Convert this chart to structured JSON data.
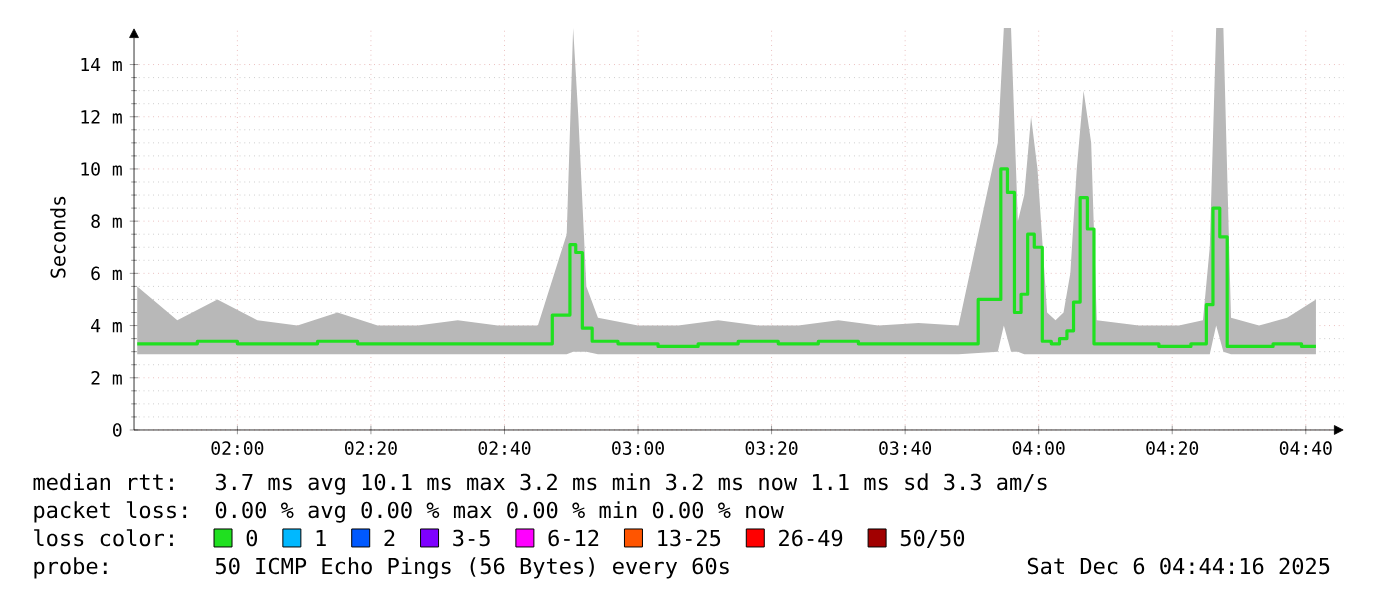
{
  "chart_data": {
    "type": "step",
    "ylabel": "Seconds",
    "legend_title": "loss color:",
    "legend": "bottom",
    "grid": true,
    "xlim": [
      1.742,
      4.762
    ],
    "ylim": [
      0,
      15.4
    ],
    "xticks": [
      {
        "value": 2,
        "label": "02:00"
      },
      {
        "value": 2.3333,
        "label": "02:20"
      },
      {
        "value": 2.6667,
        "label": "02:40"
      },
      {
        "value": 3,
        "label": "03:00"
      },
      {
        "value": 3.3333,
        "label": "03:20"
      },
      {
        "value": 3.6667,
        "label": "03:40"
      },
      {
        "value": 4,
        "label": "04:00"
      },
      {
        "value": 4.3333,
        "label": "04:20"
      },
      {
        "value": 4.6667,
        "label": "04:40"
      }
    ],
    "yticks": [
      0,
      {
        "value": 2,
        "label": "2 m"
      },
      {
        "value": 4,
        "label": "4 m"
      },
      {
        "value": 6,
        "label": "6 m"
      },
      {
        "value": 8,
        "label": "8 m"
      },
      {
        "value": 10,
        "label": "10 m"
      },
      {
        "value": 12,
        "label": "12 m"
      },
      {
        "value": 14,
        "label": "14 m"
      }
    ],
    "x": [
      1.75,
      1.85,
      1.95,
      2.05,
      2.15,
      2.25,
      2.35,
      2.45,
      2.55,
      2.65,
      2.75,
      2.822,
      2.838,
      2.851,
      2.871,
      2.9,
      3.0,
      3.1,
      3.2,
      3.3,
      3.4,
      3.5,
      3.6,
      3.7,
      3.8,
      3.898,
      3.913,
      3.931,
      3.948,
      3.964,
      3.981,
      3.997,
      4.021,
      4.042,
      4.062,
      4.079,
      4.095,
      4.112,
      4.131,
      4.145,
      4.25,
      4.35,
      4.41,
      4.427,
      4.443,
      4.461,
      4.48,
      4.55,
      4.62,
      4.692
    ],
    "series": [
      {
        "name": "0",
        "color": "#20e020",
        "values": [
          3.3,
          3.3,
          3.4,
          3.3,
          3.3,
          3.4,
          3.3,
          3.3,
          3.3,
          3.3,
          3.3,
          4.4,
          7.1,
          6.8,
          3.9,
          3.4,
          3.3,
          3.2,
          3.3,
          3.4,
          3.3,
          3.4,
          3.3,
          3.3,
          3.3,
          5.0,
          10.0,
          9.1,
          4.5,
          5.2,
          7.5,
          7.0,
          3.4,
          3.3,
          3.5,
          3.8,
          4.9,
          8.9,
          7.7,
          3.3,
          3.3,
          3.2,
          3.3,
          4.8,
          8.5,
          7.4,
          3.2,
          3.2,
          3.3,
          3.2
        ],
        "lower": [
          2.9,
          2.9,
          2.9,
          2.9,
          2.9,
          2.9,
          2.9,
          2.9,
          2.9,
          2.9,
          2.9,
          2.9,
          3.0,
          3.0,
          3.0,
          2.9,
          2.9,
          2.9,
          2.9,
          2.9,
          2.9,
          2.9,
          2.9,
          2.9,
          2.9,
          3.0,
          4.0,
          3.0,
          3.0,
          2.9,
          2.9,
          2.9,
          2.9,
          2.9,
          2.9,
          2.9,
          2.9,
          2.9,
          2.9,
          2.9,
          2.9,
          2.9,
          2.9,
          2.9,
          4.0,
          3.0,
          2.9,
          2.9,
          2.9,
          2.9
        ],
        "upper": [
          5.5,
          4.2,
          5.0,
          4.2,
          4.0,
          4.5,
          4.0,
          4.0,
          4.2,
          4.0,
          4.0,
          7.5,
          15.4,
          12.0,
          5.5,
          4.3,
          4.0,
          4.0,
          4.2,
          4.0,
          4.0,
          4.2,
          4.0,
          4.1,
          4.0,
          11.0,
          15.4,
          15.4,
          8.0,
          9.0,
          12.0,
          10.0,
          4.5,
          4.2,
          4.5,
          6.0,
          10.0,
          13.0,
          11.0,
          4.2,
          4.0,
          4.0,
          4.2,
          7.0,
          15.4,
          15.4,
          4.3,
          4.0,
          4.3,
          5.0
        ]
      },
      {
        "name": "1",
        "color": "#00b8ff",
        "values": [
          null,
          null,
          null,
          null,
          null,
          null,
          null,
          null,
          null,
          null,
          null,
          null,
          null,
          null,
          null,
          null,
          null,
          null,
          null,
          null,
          null,
          null,
          null,
          null,
          null,
          null,
          null,
          null,
          null,
          null,
          null,
          null,
          null,
          null,
          null,
          null,
          null,
          null,
          null,
          null,
          null,
          null,
          null,
          null,
          null,
          null,
          null,
          null,
          null,
          null
        ]
      },
      {
        "name": "2",
        "color": "#0059ff",
        "values": [
          null,
          null,
          null,
          null,
          null,
          null,
          null,
          null,
          null,
          null,
          null,
          null,
          null,
          null,
          null,
          null,
          null,
          null,
          null,
          null,
          null,
          null,
          null,
          null,
          null,
          null,
          null,
          null,
          null,
          null,
          null,
          null,
          null,
          null,
          null,
          null,
          null,
          null,
          null,
          null,
          null,
          null,
          null,
          null,
          null,
          null,
          null,
          null,
          null,
          null
        ]
      },
      {
        "name": "3-5",
        "color": "#7e00ff",
        "values": [
          null,
          null,
          null,
          null,
          null,
          null,
          null,
          null,
          null,
          null,
          null,
          null,
          null,
          null,
          null,
          null,
          null,
          null,
          null,
          null,
          null,
          null,
          null,
          null,
          null,
          null,
          null,
          null,
          null,
          null,
          null,
          null,
          null,
          null,
          null,
          null,
          null,
          null,
          null,
          null,
          null,
          null,
          null,
          null,
          null,
          null,
          null,
          null,
          null,
          null
        ]
      },
      {
        "name": "6-12",
        "color": "#ff00ff",
        "values": [
          null,
          null,
          null,
          null,
          null,
          null,
          null,
          null,
          null,
          null,
          null,
          null,
          null,
          null,
          null,
          null,
          null,
          null,
          null,
          null,
          null,
          null,
          null,
          null,
          null,
          null,
          null,
          null,
          null,
          null,
          null,
          null,
          null,
          null,
          null,
          null,
          null,
          null,
          null,
          null,
          null,
          null,
          null,
          null,
          null,
          null,
          null,
          null,
          null,
          null
        ]
      },
      {
        "name": "13-25",
        "color": "#ff5500",
        "values": [
          null,
          null,
          null,
          null,
          null,
          null,
          null,
          null,
          null,
          null,
          null,
          null,
          null,
          null,
          null,
          null,
          null,
          null,
          null,
          null,
          null,
          null,
          null,
          null,
          null,
          null,
          null,
          null,
          null,
          null,
          null,
          null,
          null,
          null,
          null,
          null,
          null,
          null,
          null,
          null,
          null,
          null,
          null,
          null,
          null,
          null,
          null,
          null,
          null,
          null
        ]
      },
      {
        "name": "26-49",
        "color": "#ff0000",
        "values": [
          null,
          null,
          null,
          null,
          null,
          null,
          null,
          null,
          null,
          null,
          null,
          null,
          null,
          null,
          null,
          null,
          null,
          null,
          null,
          null,
          null,
          null,
          null,
          null,
          null,
          null,
          null,
          null,
          null,
          null,
          null,
          null,
          null,
          null,
          null,
          null,
          null,
          null,
          null,
          null,
          null,
          null,
          null,
          null,
          null,
          null,
          null,
          null,
          null,
          null
        ]
      },
      {
        "name": "50/50",
        "color": "#a10000",
        "values": [
          null,
          null,
          null,
          null,
          null,
          null,
          null,
          null,
          null,
          null,
          null,
          null,
          null,
          null,
          null,
          null,
          null,
          null,
          null,
          null,
          null,
          null,
          null,
          null,
          null,
          null,
          null,
          null,
          null,
          null,
          null,
          null,
          null,
          null,
          null,
          null,
          null,
          null,
          null,
          null,
          null,
          null,
          null,
          null,
          null,
          null,
          null,
          null,
          null,
          null
        ]
      }
    ],
    "annotations": [
      "median rtt:",
      "3.7 ms avg 10.1 ms max 3.2 ms min 3.2 ms now 1.1 ms sd 3.3 am/s",
      "packet loss:",
      "0.00 % avg 0.00 % max 0.00 % min 0.00 % now",
      "probe:",
      "50 ICMP Echo Pings (56 Bytes) every 60s",
      "Sat Dec 6 04:44:16 2025"
    ]
  }
}
